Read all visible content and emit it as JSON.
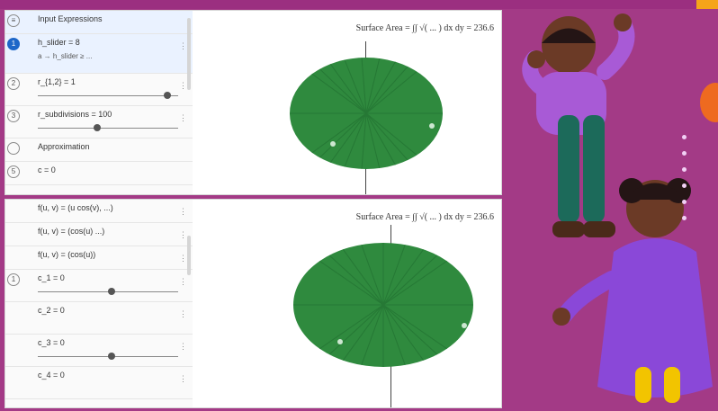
{
  "top_pane": {
    "header": "Input Expressions",
    "rows": [
      {
        "index": "1",
        "label": "h_slider = 8",
        "sub": "a → h_slider ≥ ..."
      },
      {
        "index": "2",
        "label": "r_{1,2} = 1"
      },
      {
        "index": "3",
        "label": "r_subdivisions = 100"
      },
      {
        "index": "",
        "label": "Approximation"
      },
      {
        "index": "5",
        "label": "c = 0"
      }
    ],
    "formula": "Surface Area = ∫∫ √( ... ) dx dy = 236.6"
  },
  "bottom_pane": {
    "rows": [
      {
        "label": "f(u, v) = (u cos(v), ...)"
      },
      {
        "label": "f(u, v) = (cos(u) ...)"
      },
      {
        "label": "f(u, v) = (cos(u))"
      },
      {
        "label": "c_1 = 0",
        "value": ""
      },
      {
        "label": "c_2 = 0"
      },
      {
        "label": "c_3 = 0"
      },
      {
        "label": "c_4 = 0"
      }
    ],
    "formula": "Surface Area = ∫∫ √( ... ) dx dy = 236.6"
  },
  "colors": {
    "ellipse_fill": "#2f8a3e",
    "ellipse_lines": "#1f6a2e",
    "background": "#a33a86"
  }
}
